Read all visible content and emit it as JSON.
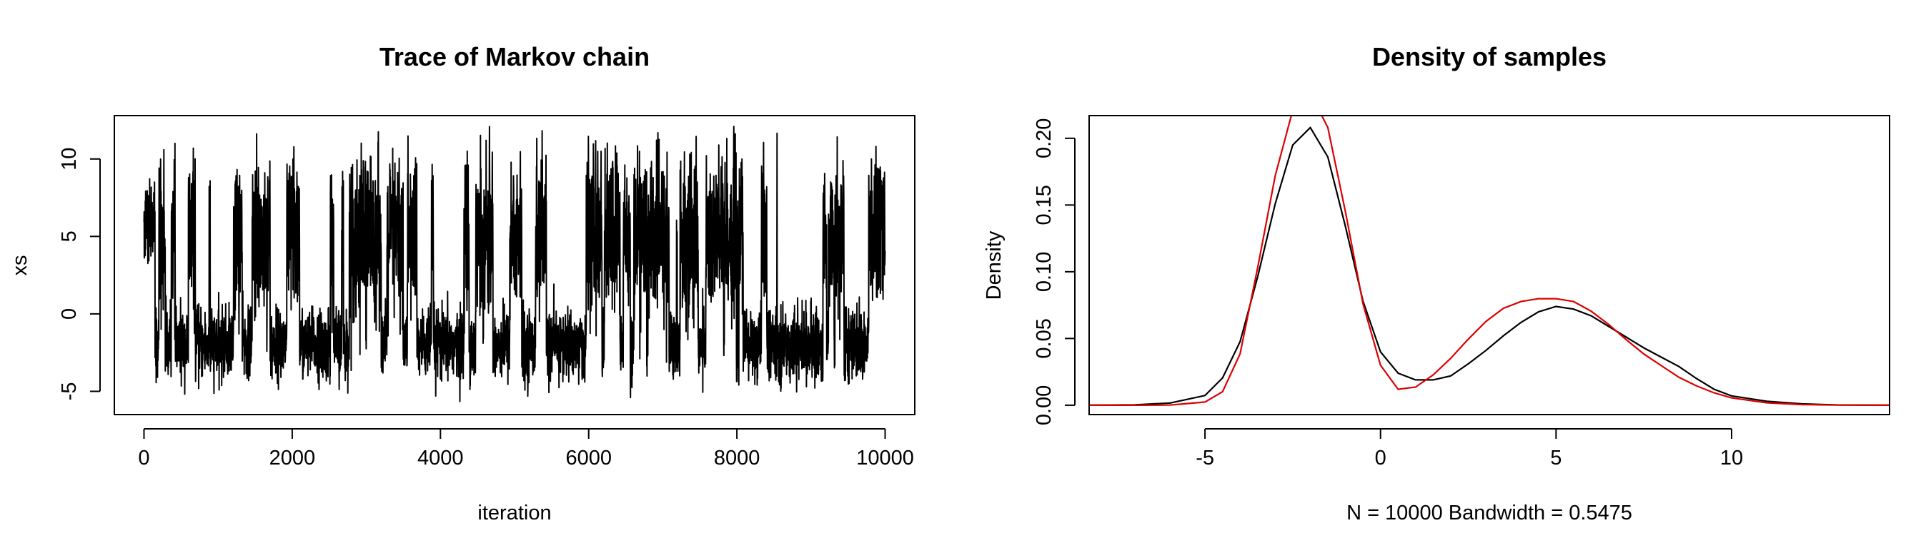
{
  "chart_data": [
    {
      "type": "line",
      "title": "Trace of Markov chain",
      "xlabel": "iteration",
      "ylabel": "xs",
      "xlim": [
        -400,
        10400
      ],
      "ylim": [
        -6.5,
        12.8
      ],
      "x_ticks": [
        0,
        2000,
        4000,
        6000,
        8000,
        10000
      ],
      "x_tick_labels": [
        "0",
        "2000",
        "4000",
        "6000",
        "8000",
        "10000"
      ],
      "y_ticks": [
        -5,
        0,
        5,
        10
      ],
      "y_tick_labels": [
        "-5",
        "0",
        "5",
        "10"
      ],
      "grid": false,
      "legend": "none",
      "n_samples": 10000,
      "x_range": [
        0,
        10000
      ],
      "y_range_observed": [
        -5.8,
        12.1
      ],
      "modes": [
        -2,
        5
      ],
      "series": [
        {
          "color": "#000000"
        }
      ]
    },
    {
      "type": "line",
      "title": "Density of samples",
      "xlabel": "N = 10000   Bandwidth = 0.5475",
      "ylabel": "Density",
      "xlim": [
        -8.3,
        14.5
      ],
      "ylim": [
        -0.007,
        0.217
      ],
      "x_ticks": [
        -5,
        0,
        5,
        10
      ],
      "x_tick_labels": [
        "-5",
        "0",
        "5",
        "10"
      ],
      "y_ticks": [
        0.0,
        0.05,
        0.1,
        0.15,
        0.2
      ],
      "y_tick_labels": [
        "0.00",
        "0.05",
        "0.10",
        "0.15",
        "0.20"
      ],
      "grid": false,
      "legend": "none",
      "series": [
        {
          "color": "#000000",
          "x": [
            -8.3,
            -7,
            -6,
            -5,
            -4.5,
            -4,
            -3.5,
            -3,
            -2.5,
            -2,
            -1.5,
            -1,
            -0.5,
            0,
            0.5,
            1,
            1.5,
            2,
            2.5,
            3,
            3.5,
            4,
            4.5,
            5,
            5.5,
            6,
            6.5,
            7,
            7.5,
            8,
            8.5,
            9,
            9.5,
            10,
            11,
            12,
            13,
            14.5
          ],
          "y": [
            0,
            0.0003,
            0.0016,
            0.0073,
            0.0205,
            0.0476,
            0.0962,
            0.151,
            0.195,
            0.208,
            0.186,
            0.134,
            0.078,
            0.04,
            0.024,
            0.019,
            0.019,
            0.022,
            0.031,
            0.041,
            0.052,
            0.062,
            0.07,
            0.074,
            0.072,
            0.067,
            0.059,
            0.051,
            0.043,
            0.036,
            0.029,
            0.02,
            0.012,
            0.007,
            0.003,
            0.001,
            0.0002,
            0
          ]
        },
        {
          "color": "#dd0000",
          "x": [
            -8.3,
            -7,
            -6,
            -5,
            -4.5,
            -4,
            -3.5,
            -3,
            -2.5,
            -2,
            -1.5,
            -1,
            -0.5,
            0,
            0.5,
            1,
            1.5,
            2,
            2.5,
            3,
            3.5,
            4,
            4.5,
            5,
            5.5,
            6,
            6.5,
            7,
            7.5,
            8,
            8.5,
            9,
            9.5,
            10,
            11,
            12,
            13,
            14.5
          ],
          "y": [
            0,
            0,
            0.0001,
            0.0024,
            0.0101,
            0.0385,
            0.103,
            0.172,
            0.221,
            0.234,
            0.208,
            0.145,
            0.076,
            0.03,
            0.0119,
            0.0136,
            0.0227,
            0.0352,
            0.0495,
            0.0627,
            0.0726,
            0.0777,
            0.0798,
            0.0798,
            0.0777,
            0.0704,
            0.0605,
            0.0491,
            0.0384,
            0.0296,
            0.0209,
            0.0145,
            0.0093,
            0.0055,
            0.0018,
            0.0005,
            0.0001,
            0
          ]
        }
      ]
    }
  ]
}
